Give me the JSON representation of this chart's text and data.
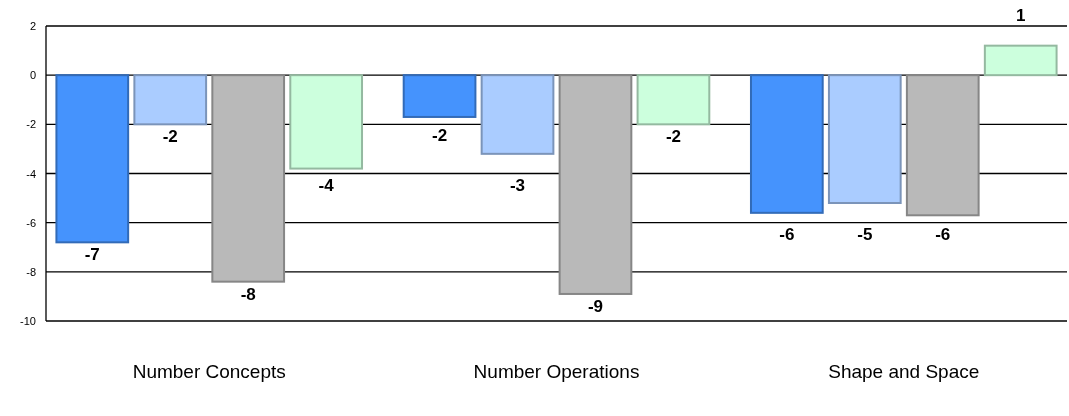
{
  "chart_data": {
    "type": "bar",
    "categories": [
      "Number Concepts",
      "Number Operations",
      "Shape and Space"
    ],
    "series": [
      {
        "color": "#4593fd",
        "values": [
          -6.8,
          -1.7,
          -5.6
        ],
        "value_labels": [
          "-7",
          "-2",
          "-6"
        ]
      },
      {
        "color": "#aaccff",
        "values": [
          -2,
          -3.2,
          -5.2
        ],
        "value_labels": [
          "-2",
          "-3",
          "-5"
        ]
      },
      {
        "color": "#b9b9b9",
        "values": [
          -8.4,
          -8.9,
          -5.7
        ],
        "value_labels": [
          "-8",
          "-9",
          "-6"
        ]
      },
      {
        "color": "#ccffdd",
        "values": [
          -3.8,
          -2,
          1.2
        ],
        "value_labels": [
          "-4",
          "-2",
          "1"
        ]
      }
    ],
    "ylim": [
      -10,
      2
    ],
    "yticks": [
      2,
      0,
      -2,
      -4,
      -6,
      -8,
      -10
    ],
    "grid": "y"
  }
}
